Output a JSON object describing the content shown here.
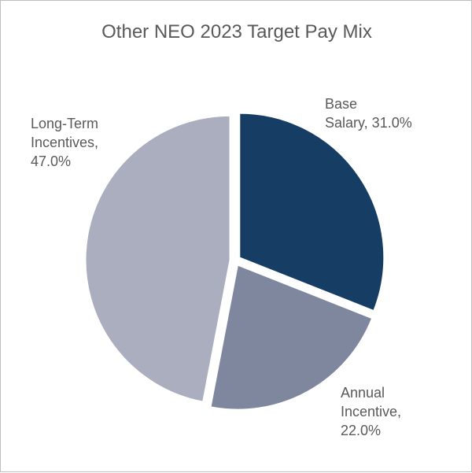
{
  "chart_data": {
    "type": "pie",
    "title": "Other NEO 2023 Target Pay Mix",
    "slices": [
      {
        "name": "Base Salary",
        "value": 31.0,
        "color": "#163d63",
        "label_lines": [
          "Base",
          "Salary, 31.0%"
        ]
      },
      {
        "name": "Annual Incentive",
        "value": 22.0,
        "color": "#7f879f",
        "label_lines": [
          "Annual",
          "Incentive,",
          "22.0%"
        ]
      },
      {
        "name": "Long-Term Incentives",
        "value": 47.0,
        "color": "#aaaebf",
        "label_lines": [
          "Long-Term",
          "Incentives,",
          "47.0%"
        ]
      }
    ],
    "legend": "none",
    "background_color": "#ffffff"
  }
}
